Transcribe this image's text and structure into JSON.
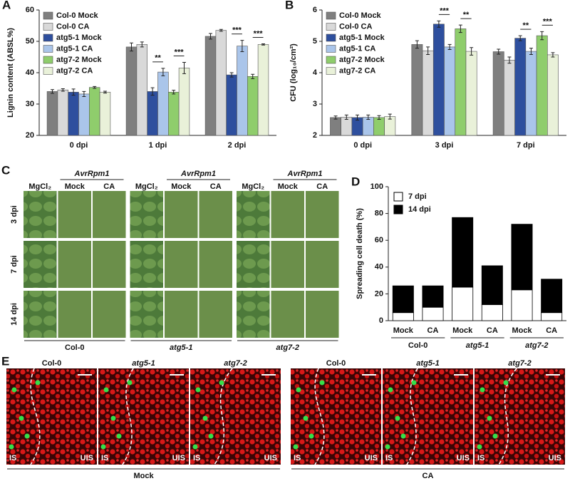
{
  "chart_data": [
    {
      "type": "bar",
      "panel": "A",
      "y_label": "Lignin content (ABSL%)",
      "categories": [
        "0 dpi",
        "1 dpi",
        "2 dpi"
      ],
      "series": [
        {
          "name": "Col-0 Mock",
          "color": "#7f7f7f",
          "values": [
            34,
            48.2,
            51.6
          ],
          "errors": [
            0.6,
            1.3,
            0.9
          ]
        },
        {
          "name": "Col-0 CA",
          "color": "#d9d9d9",
          "values": [
            34.5,
            49,
            53.5
          ],
          "errors": [
            0.4,
            0.8,
            0.3
          ]
        },
        {
          "name": "atg5-1 Mock",
          "color": "#2e4f9e",
          "values": [
            33.8,
            34,
            39.3
          ],
          "errors": [
            1,
            1.2,
            0.7
          ]
        },
        {
          "name": "atg5-1 CA",
          "color": "#aac5ea",
          "values": [
            33.2,
            40.2,
            48.5
          ],
          "errors": [
            0.8,
            1.2,
            1.8
          ]
        },
        {
          "name": "atg7-2 Mock",
          "color": "#8fcd6c",
          "values": [
            35.3,
            33.8,
            38.8
          ],
          "errors": [
            0.3,
            0.6,
            0.7
          ]
        },
        {
          "name": "atg7-2 CA",
          "color": "#e9f1d9",
          "values": [
            33.8,
            41.5,
            49
          ],
          "errors": [
            0.3,
            1.8,
            0.2
          ]
        }
      ],
      "annotations": [
        {
          "category": 1,
          "series": [
            2,
            3
          ],
          "text": "**"
        },
        {
          "category": 1,
          "series": [
            4,
            5
          ],
          "text": "***"
        },
        {
          "category": 2,
          "series": [
            2,
            3
          ],
          "text": "***"
        },
        {
          "category": 2,
          "series": [
            4,
            5
          ],
          "text": "***"
        }
      ],
      "ylim": [
        20,
        60
      ],
      "yticks": [
        20,
        30,
        40,
        50,
        60
      ],
      "legend": "upper left"
    },
    {
      "type": "bar",
      "panel": "B",
      "y_label": "CFU (log₁₀/cm²)",
      "categories": [
        "0 dpi",
        "3 dpi",
        "7 dpi"
      ],
      "series": [
        {
          "name": "Col-0 Mock",
          "color": "#7f7f7f",
          "values": [
            2.57,
            4.9,
            4.67
          ],
          "errors": [
            0.05,
            0.12,
            0.08
          ]
        },
        {
          "name": "Col-0 CA",
          "color": "#d9d9d9",
          "values": [
            2.58,
            4.7,
            4.4
          ],
          "errors": [
            0.07,
            0.12,
            0.1
          ]
        },
        {
          "name": "atg5-1 Mock",
          "color": "#2e4f9e",
          "values": [
            2.57,
            5.55,
            5.1
          ],
          "errors": [
            0.08,
            0.1,
            0.08
          ]
        },
        {
          "name": "atg5-1 CA",
          "color": "#aac5ea",
          "values": [
            2.58,
            4.82,
            4.68
          ],
          "errors": [
            0.07,
            0.08,
            0.1
          ]
        },
        {
          "name": "atg7-2 Mock",
          "color": "#8fcd6c",
          "values": [
            2.57,
            5.4,
            5.18
          ],
          "errors": [
            0.06,
            0.12,
            0.13
          ]
        },
        {
          "name": "atg7-2 CA",
          "color": "#e9f1d9",
          "values": [
            2.6,
            4.68,
            4.57
          ],
          "errors": [
            0.08,
            0.12,
            0.07
          ]
        }
      ],
      "annotations": [
        {
          "category": 1,
          "series": [
            2,
            3
          ],
          "text": "***"
        },
        {
          "category": 1,
          "series": [
            4,
            5
          ],
          "text": "**"
        },
        {
          "category": 2,
          "series": [
            2,
            3
          ],
          "text": "**"
        },
        {
          "category": 2,
          "series": [
            4,
            5
          ],
          "text": "***"
        }
      ],
      "ylim": [
        2,
        6
      ],
      "yticks": [
        2,
        3,
        4,
        5,
        6
      ],
      "legend": "upper left"
    },
    {
      "type": "stacked_bar",
      "panel": "D",
      "y_label": "Spreading cell death (%)",
      "categories": [
        "Mock",
        "CA",
        "Mock",
        "CA",
        "Mock",
        "CA"
      ],
      "groups": [
        "Col-0",
        "atg5-1",
        "atg7-2"
      ],
      "series": [
        {
          "name": "7 dpi",
          "color": "#ffffff",
          "values": [
            6,
            10,
            25,
            12,
            23,
            6
          ]
        },
        {
          "name": "14 dpi",
          "color": "#000000",
          "values": [
            20,
            16,
            52,
            29,
            49,
            25
          ]
        }
      ],
      "ylim": [
        0,
        100
      ],
      "yticks": [
        0,
        20,
        40,
        60,
        80,
        100
      ],
      "legend": "upper left"
    }
  ],
  "panel_c": {
    "panel": "C",
    "treatment": "AvrRpm1",
    "columns": [
      "MgCl₂",
      "Mock",
      "CA"
    ],
    "rows": [
      "3 dpi",
      "7 dpi",
      "14 dpi"
    ],
    "genotypes": [
      "Col-0",
      "atg5-1",
      "atg7-2"
    ]
  },
  "panel_e": {
    "panel": "E",
    "genotypes": [
      "Col-0",
      "atg5-1",
      "atg7-2"
    ],
    "left_corner": "IS",
    "right_corner": "UIS",
    "treatments": [
      "Mock",
      "CA"
    ]
  }
}
